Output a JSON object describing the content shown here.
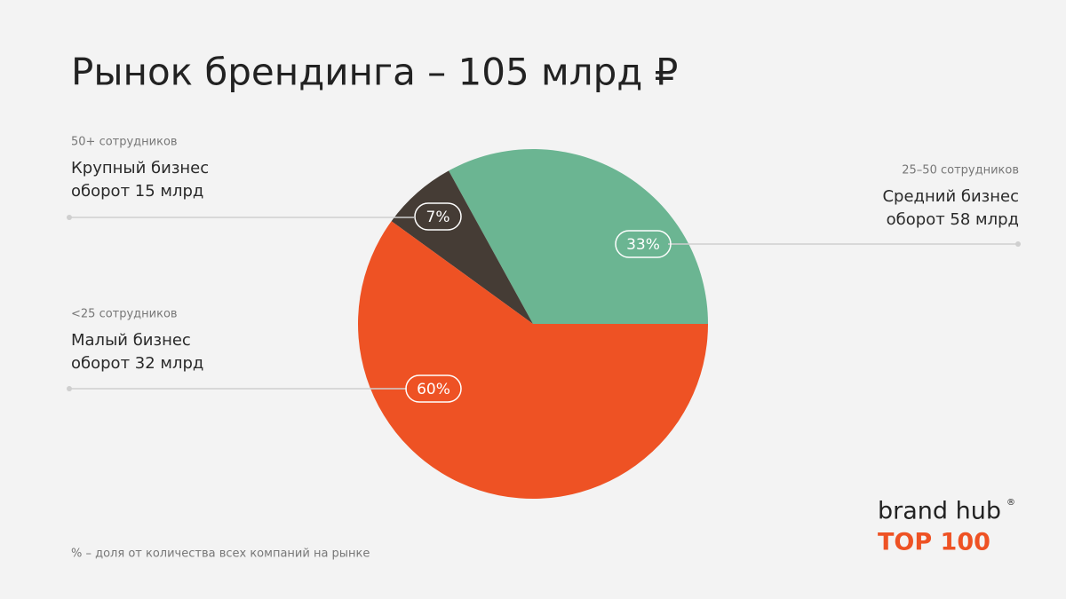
{
  "chart_data": {
    "type": "pie",
    "title": "Рынок брендинга – 105 млрд ₽",
    "categories": [
      "Средний бизнес",
      "Крупный бизнес",
      "Малый бизнес"
    ],
    "groups": [
      "25–50 сотрудников",
      "50+ сотрудников",
      "<25 сотрудников"
    ],
    "details": [
      "оборот 58 млрд",
      "оборот 15 млрд",
      "оборот 32 млрд"
    ],
    "values": [
      33,
      7,
      60
    ],
    "value_labels": [
      "33%",
      "7%",
      "60%"
    ],
    "colors": [
      "#6bb592",
      "#453c35",
      "#ee5224"
    ],
    "footnote": "% – доля от количества всех компаний на рынке"
  },
  "brand": {
    "name": "brand hub",
    "mark": "®",
    "tag": "TOP 100"
  }
}
